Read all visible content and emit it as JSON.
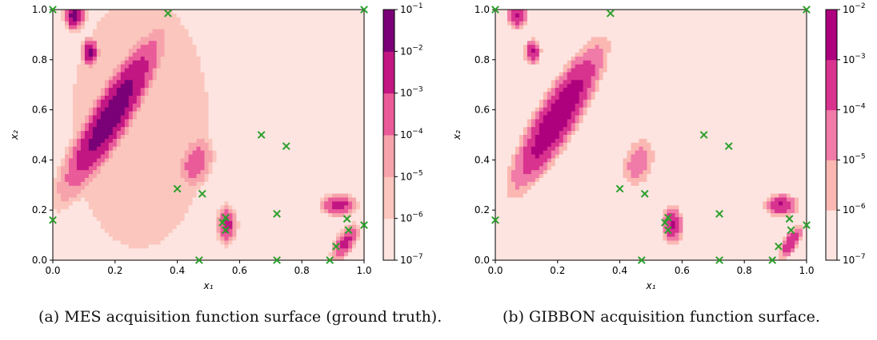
{
  "chart_data": [
    {
      "type": "heatmap",
      "title": "",
      "xlabel": "x₁",
      "ylabel": "x₂",
      "xlim": [
        0,
        1
      ],
      "ylim": [
        0,
        1
      ],
      "xticks": [
        "0.0",
        "0.2",
        "0.4",
        "0.6",
        "0.8",
        "1.0"
      ],
      "yticks": [
        "0.0",
        "0.2",
        "0.4",
        "0.6",
        "0.8",
        "1.0"
      ],
      "colorbar": {
        "scale": "log",
        "levels": [
          -7,
          -6,
          -5,
          -4,
          -3,
          -2,
          -1
        ],
        "colors": [
          "#fde4e0",
          "#fbc6bd",
          "#f7a3ac",
          "#ea5b99",
          "#c21683",
          "#7a0177"
        ]
      },
      "blobs": [
        {
          "x": 0.07,
          "y": 0.98,
          "sx": 0.025,
          "sy": 0.045,
          "rot": 0,
          "peak": -1.6
        },
        {
          "x": 0.12,
          "y": 0.83,
          "sx": 0.02,
          "sy": 0.04,
          "rot": 0,
          "peak": -1.7
        },
        {
          "x": 0.19,
          "y": 0.58,
          "sx": 0.05,
          "sy": 0.25,
          "rot": 25,
          "peak": -1.4
        },
        {
          "x": 0.46,
          "y": 0.39,
          "sx": 0.045,
          "sy": 0.09,
          "rot": 10,
          "peak": -3.3
        },
        {
          "x": 0.56,
          "y": 0.14,
          "sx": 0.025,
          "sy": 0.06,
          "rot": 0,
          "peak": -2.6
        },
        {
          "x": 0.92,
          "y": 0.22,
          "sx": 0.045,
          "sy": 0.035,
          "rot": 0,
          "peak": -2.5
        },
        {
          "x": 0.94,
          "y": 0.07,
          "sx": 0.025,
          "sy": 0.06,
          "rot": 25,
          "peak": -2.6
        }
      ],
      "background": {
        "base": -6.7,
        "high_regions": [
          {
            "x": 0.28,
            "y": 0.55,
            "sx": 0.22,
            "sy": 0.5,
            "level": -5.6
          },
          {
            "x": 0.75,
            "y": 0.25,
            "sx": 0.4,
            "sy": 0.35,
            "level": -6.2
          }
        ]
      },
      "queried_points": [
        {
          "x": 0.0,
          "y": 0.16
        },
        {
          "x": 0.0,
          "y": 1.0
        },
        {
          "x": 0.37,
          "y": 0.985
        },
        {
          "x": 0.4,
          "y": 0.285
        },
        {
          "x": 0.48,
          "y": 0.265
        },
        {
          "x": 0.47,
          "y": 0.0
        },
        {
          "x": 0.545,
          "y": 0.15
        },
        {
          "x": 0.555,
          "y": 0.17
        },
        {
          "x": 0.555,
          "y": 0.12
        },
        {
          "x": 0.67,
          "y": 0.5
        },
        {
          "x": 0.75,
          "y": 0.455
        },
        {
          "x": 0.72,
          "y": 0.185
        },
        {
          "x": 0.72,
          "y": 0.0
        },
        {
          "x": 0.89,
          "y": 0.0
        },
        {
          "x": 0.91,
          "y": 0.055
        },
        {
          "x": 0.945,
          "y": 0.165
        },
        {
          "x": 0.95,
          "y": 0.12
        },
        {
          "x": 1.0,
          "y": 0.14
        },
        {
          "x": 1.0,
          "y": 1.0
        }
      ]
    },
    {
      "type": "heatmap",
      "title": "",
      "xlabel": "x₁",
      "ylabel": "x₂",
      "xlim": [
        0,
        1
      ],
      "ylim": [
        0,
        1
      ],
      "xticks": [
        "0.0",
        "0.2",
        "0.4",
        "0.6",
        "0.8",
        "1.0"
      ],
      "yticks": [
        "0.0",
        "0.2",
        "0.4",
        "0.6",
        "0.8",
        "1.0"
      ],
      "colorbar": {
        "scale": "log",
        "levels": [
          -7,
          -6,
          -5,
          -4,
          -3,
          -2
        ],
        "colors": [
          "#fde4e0",
          "#fbb8b2",
          "#f07aa8",
          "#d8338f",
          "#ae017e"
        ]
      },
      "blobs": [
        {
          "x": 0.07,
          "y": 0.98,
          "sx": 0.025,
          "sy": 0.045,
          "rot": 0,
          "peak": -2.9
        },
        {
          "x": 0.12,
          "y": 0.83,
          "sx": 0.02,
          "sy": 0.04,
          "rot": 0,
          "peak": -2.9
        },
        {
          "x": 0.2,
          "y": 0.57,
          "sx": 0.05,
          "sy": 0.23,
          "rot": 25,
          "peak": -2.1
        },
        {
          "x": 0.46,
          "y": 0.39,
          "sx": 0.045,
          "sy": 0.09,
          "rot": 10,
          "peak": -4.3
        },
        {
          "x": 0.57,
          "y": 0.14,
          "sx": 0.025,
          "sy": 0.06,
          "rot": 0,
          "peak": -2.9
        },
        {
          "x": 0.92,
          "y": 0.22,
          "sx": 0.04,
          "sy": 0.035,
          "rot": 0,
          "peak": -2.9
        },
        {
          "x": 0.95,
          "y": 0.07,
          "sx": 0.02,
          "sy": 0.055,
          "rot": 25,
          "peak": -3.0
        }
      ],
      "background": {
        "base": -6.6,
        "high_regions": []
      },
      "queried_points": [
        {
          "x": 0.0,
          "y": 0.16
        },
        {
          "x": 0.0,
          "y": 1.0
        },
        {
          "x": 0.37,
          "y": 0.985
        },
        {
          "x": 0.4,
          "y": 0.285
        },
        {
          "x": 0.48,
          "y": 0.265
        },
        {
          "x": 0.47,
          "y": 0.0
        },
        {
          "x": 0.545,
          "y": 0.15
        },
        {
          "x": 0.555,
          "y": 0.17
        },
        {
          "x": 0.555,
          "y": 0.12
        },
        {
          "x": 0.67,
          "y": 0.5
        },
        {
          "x": 0.75,
          "y": 0.455
        },
        {
          "x": 0.72,
          "y": 0.185
        },
        {
          "x": 0.72,
          "y": 0.0
        },
        {
          "x": 0.89,
          "y": 0.0
        },
        {
          "x": 0.91,
          "y": 0.055
        },
        {
          "x": 0.945,
          "y": 0.165
        },
        {
          "x": 0.95,
          "y": 0.12
        },
        {
          "x": 1.0,
          "y": 0.14
        },
        {
          "x": 1.0,
          "y": 1.0
        }
      ]
    }
  ],
  "captions": {
    "a": "(a) MES acquisition function surface (ground truth).",
    "b": "(b) GIBBON acquisition function surface."
  },
  "marker_color": "#2ca02c"
}
